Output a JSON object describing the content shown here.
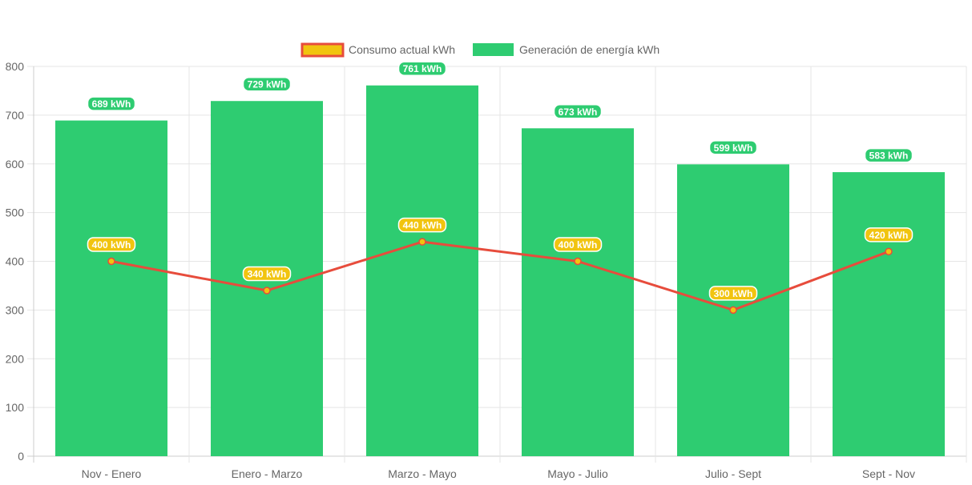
{
  "chart_data": {
    "type": "bar",
    "categories": [
      "Nov - Enero",
      "Enero - Marzo",
      "Marzo - Mayo",
      "Mayo - Julio",
      "Julio - Sept",
      "Sept - Nov"
    ],
    "series": [
      {
        "name": "Consumo actual kWh",
        "type": "line",
        "values": [
          400,
          340,
          440,
          400,
          300,
          420
        ],
        "data_labels": [
          "400 kWh",
          "340 kWh",
          "440 kWh",
          "400 kWh",
          "300 kWh",
          "420 kWh"
        ],
        "color": "#e74c3c",
        "fill_color": "#f1c40f"
      },
      {
        "name": "Generación de energía kWh",
        "type": "bar",
        "values": [
          689,
          729,
          761,
          673,
          599,
          583
        ],
        "data_labels": [
          "689 kWh",
          "729 kWh",
          "761 kWh",
          "673 kWh",
          "599 kWh",
          "583 kWh"
        ],
        "color": "#2ecc71"
      }
    ],
    "ylim": [
      0,
      800
    ],
    "yticks": [
      "0",
      "100",
      "200",
      "300",
      "400",
      "500",
      "600",
      "700",
      "800"
    ],
    "grid": true,
    "legend_position": "top-center"
  }
}
